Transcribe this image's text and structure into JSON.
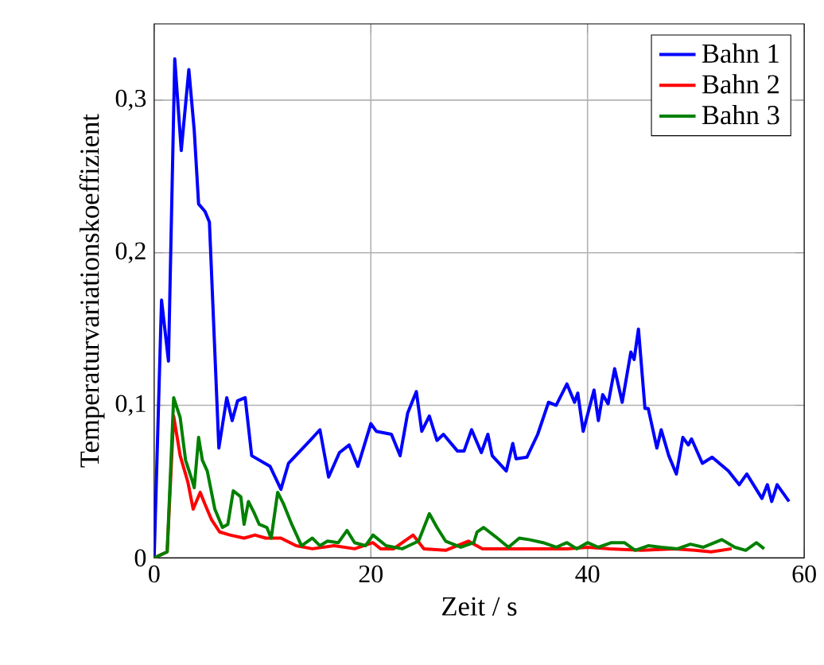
{
  "chart_data": {
    "type": "line",
    "xlabel": "Zeit  /  s",
    "ylabel": "Temperaturvariationskoeffizient",
    "xlim": [
      0,
      60
    ],
    "ylim": [
      0,
      0.35
    ],
    "xticks": [
      0,
      20,
      40,
      60
    ],
    "yticks": [
      0,
      {
        "value": 0.1,
        "label": "0,1"
      },
      {
        "value": 0.2,
        "label": "0,2"
      },
      {
        "value": 0.3,
        "label": "0,3"
      }
    ],
    "grid": true,
    "legend": "top right",
    "marker": "none",
    "line_style": "solid",
    "series": [
      {
        "name": "Bahn 1",
        "color": "#0000ff",
        "x": [
          0,
          0.68,
          1.32,
          1.9,
          2.5,
          3.2,
          3.7,
          4.1,
          4.7,
          5.1,
          5.97,
          6.7,
          7.2,
          7.7,
          8.4,
          9.0,
          10.7,
          11.7,
          12.4,
          13.6,
          14.4,
          15.3,
          16.1,
          17.1,
          18.0,
          18.8,
          20.0,
          20.5,
          21.9,
          22.7,
          23.4,
          24.2,
          24.7,
          25.4,
          26.1,
          26.7,
          28.0,
          28.6,
          29.3,
          30.2,
          30.8,
          31.2,
          32.5,
          33.1,
          33.4,
          34.4,
          35.4,
          36.4,
          37.1,
          37.6,
          38.1,
          38.8,
          39.1,
          39.6,
          40.6,
          41.0,
          41.4,
          41.9,
          42.5,
          43.2,
          44.0,
          44.3,
          44.7,
          45.3,
          45.6,
          46.4,
          46.8,
          47.5,
          48.2,
          48.8,
          49.3,
          49.6,
          50.6,
          51.5,
          53.0,
          54.0,
          54.7,
          56.1,
          56.6,
          57.0,
          57.5,
          58.6
        ],
        "values": [
          0,
          0.169,
          0.129,
          0.327,
          0.267,
          0.32,
          0.28,
          0.232,
          0.227,
          0.22,
          0.072,
          0.105,
          0.09,
          0.103,
          0.105,
          0.067,
          0.06,
          0.045,
          0.062,
          0.071,
          0.077,
          0.084,
          0.053,
          0.069,
          0.074,
          0.06,
          0.088,
          0.083,
          0.081,
          0.067,
          0.095,
          0.109,
          0.083,
          0.093,
          0.077,
          0.081,
          0.07,
          0.07,
          0.084,
          0.069,
          0.081,
          0.067,
          0.057,
          0.075,
          0.065,
          0.066,
          0.081,
          0.102,
          0.1,
          0.107,
          0.114,
          0.102,
          0.108,
          0.083,
          0.11,
          0.09,
          0.107,
          0.101,
          0.124,
          0.102,
          0.135,
          0.13,
          0.15,
          0.098,
          0.098,
          0.072,
          0.084,
          0.067,
          0.055,
          0.079,
          0.074,
          0.078,
          0.062,
          0.066,
          0.057,
          0.048,
          0.055,
          0.039,
          0.048,
          0.037,
          0.048,
          0.037
        ]
      },
      {
        "name": "Bahn 2",
        "color": "#ff0000",
        "x": [
          0,
          1.2,
          1.8,
          2.4,
          3.1,
          3.6,
          4.25,
          4.7,
          5.3,
          6.05,
          7,
          8.3,
          9.3,
          10.3,
          11.7,
          13.1,
          14.6,
          16.6,
          18.5,
          20.2,
          20.9,
          22.1,
          23.9,
          24.9,
          26.9,
          29,
          30.3,
          34.2,
          38.1,
          40,
          42,
          45,
          48,
          49.9,
          51.4,
          53.3
        ],
        "values": [
          0,
          0.004,
          0.093,
          0.067,
          0.05,
          0.032,
          0.043,
          0.035,
          0.025,
          0.017,
          0.015,
          0.013,
          0.015,
          0.013,
          0.013,
          0.008,
          0.006,
          0.008,
          0.006,
          0.01,
          0.006,
          0.006,
          0.015,
          0.006,
          0.005,
          0.011,
          0.006,
          0.006,
          0.006,
          0.007,
          0.006,
          0.005,
          0.006,
          0.005,
          0.004,
          0.006
        ]
      },
      {
        "name": "Bahn 3",
        "color": "#008000",
        "x": [
          0,
          1.2,
          1.8,
          2.4,
          2.9,
          3.5,
          3.7,
          4.1,
          4.45,
          4.9,
          5.6,
          6.3,
          6.8,
          7.3,
          8,
          8.3,
          8.7,
          9.2,
          9.7,
          10.4,
          10.8,
          11.4,
          11.9,
          12.7,
          13.6,
          14.6,
          15.3,
          16,
          17,
          17.8,
          18.5,
          19.5,
          20.2,
          21.4,
          22.9,
          24.4,
          25.4,
          26.1,
          26.9,
          28.3,
          29.5,
          29.8,
          30.4,
          31.5,
          32.7,
          33.7,
          34.6,
          35.9,
          37.1,
          38.1,
          39,
          40,
          41,
          42.2,
          43.4,
          44.4,
          45.6,
          46.8,
          48.3,
          49.5,
          50.7,
          52.4,
          53.6,
          54.6,
          55.6,
          56.3
        ],
        "values": [
          0,
          0.004,
          0.105,
          0.092,
          0.064,
          0.051,
          0.046,
          0.079,
          0.064,
          0.057,
          0.032,
          0.02,
          0.022,
          0.044,
          0.04,
          0.022,
          0.037,
          0.03,
          0.022,
          0.02,
          0.013,
          0.043,
          0.036,
          0.022,
          0.008,
          0.013,
          0.008,
          0.011,
          0.01,
          0.018,
          0.01,
          0.008,
          0.015,
          0.008,
          0.006,
          0.011,
          0.029,
          0.02,
          0.011,
          0.007,
          0.01,
          0.017,
          0.02,
          0.014,
          0.007,
          0.013,
          0.012,
          0.01,
          0.007,
          0.01,
          0.006,
          0.01,
          0.007,
          0.01,
          0.01,
          0.005,
          0.008,
          0.007,
          0.006,
          0.009,
          0.007,
          0.012,
          0.007,
          0.005,
          0.01,
          0.006
        ]
      }
    ]
  }
}
